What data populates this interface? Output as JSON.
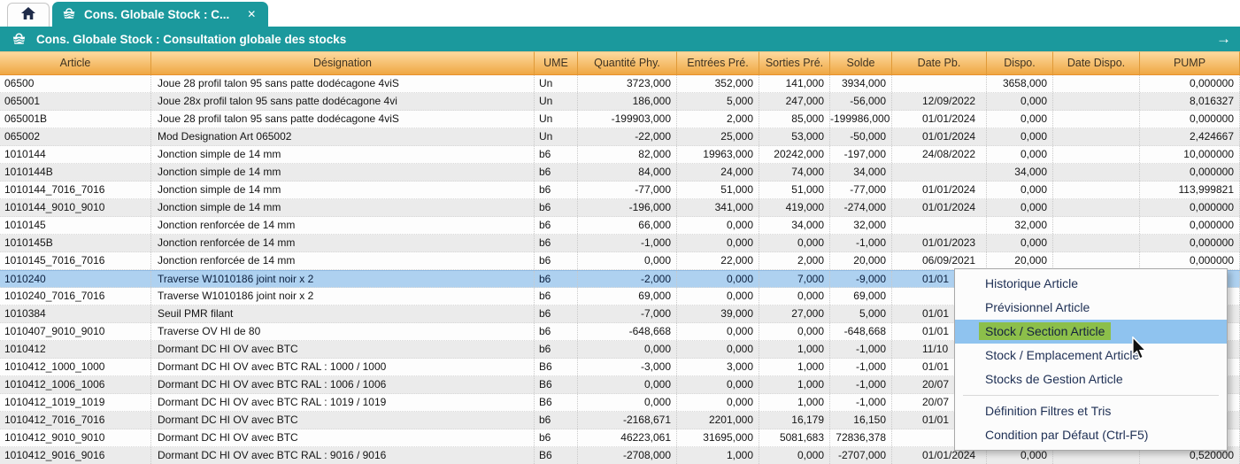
{
  "colors": {
    "accent_teal": "#1b999d",
    "header_orange_top": "#fdd99e",
    "header_orange_bottom": "#efa743",
    "row_alt_gray": "#ebebeb",
    "selection_blue": "#aed1f0",
    "menu_highlight_blue": "#8fc3ef",
    "menu_highlight_green": "#8cbf4a"
  },
  "tabs": {
    "home_icon": "home-icon",
    "active_label": "Cons. Globale Stock : C...",
    "active_close": "✕"
  },
  "title_bar": {
    "icon": "stock-icon",
    "title": "Cons. Globale Stock : Consultation globale des stocks",
    "nav_arrow": "→"
  },
  "table": {
    "columns": [
      "Article",
      "Désignation",
      "UME",
      "Quantité Phy.",
      "Entrées Pré.",
      "Sorties Pré.",
      "Solde",
      "Date Pb.",
      "Dispo.",
      "Date Dispo.",
      "PUMP"
    ],
    "selected_index": 11,
    "rows": [
      {
        "article": "06500",
        "designation": "Joue 28 profil talon 95 sans patte dodécagone 4viS",
        "ume": "Un",
        "qty_phy": "3723,000",
        "entrees": "352,000",
        "sorties": "141,000",
        "solde": "3934,000",
        "date_pb": "",
        "dispo": "3658,000",
        "date_dispo": "",
        "pump": "0,000000"
      },
      {
        "article": "065001",
        "designation": "Joue 28x profil talon 95 sans patte dodécagone 4vi",
        "ume": "Un",
        "qty_phy": "186,000",
        "entrees": "5,000",
        "sorties": "247,000",
        "solde": "-56,000",
        "date_pb": "12/09/2022",
        "dispo": "0,000",
        "date_dispo": "",
        "pump": "8,016327"
      },
      {
        "article": "065001B",
        "designation": "Joue 28 profil talon 95 sans patte dodécagone 4viS",
        "ume": "Un",
        "qty_phy": "-199903,000",
        "entrees": "2,000",
        "sorties": "85,000",
        "solde": "-199986,000",
        "date_pb": "01/01/2024",
        "dispo": "0,000",
        "date_dispo": "",
        "pump": "0,000000"
      },
      {
        "article": "065002",
        "designation": "Mod Designation Art 065002",
        "ume": "Un",
        "qty_phy": "-22,000",
        "entrees": "25,000",
        "sorties": "53,000",
        "solde": "-50,000",
        "date_pb": "01/01/2024",
        "dispo": "0,000",
        "date_dispo": "",
        "pump": "2,424667"
      },
      {
        "article": "1010144",
        "designation": "Jonction simple de 14 mm",
        "ume": "b6",
        "qty_phy": "82,000",
        "entrees": "19963,000",
        "sorties": "20242,000",
        "solde": "-197,000",
        "date_pb": "24/08/2022",
        "dispo": "0,000",
        "date_dispo": "",
        "pump": "10,000000"
      },
      {
        "article": "1010144B",
        "designation": "Jonction simple de 14 mm",
        "ume": "b6",
        "qty_phy": "84,000",
        "entrees": "24,000",
        "sorties": "74,000",
        "solde": "34,000",
        "date_pb": "",
        "dispo": "34,000",
        "date_dispo": "",
        "pump": "0,000000"
      },
      {
        "article": "1010144_7016_7016",
        "designation": "Jonction simple de 14 mm",
        "ume": "b6",
        "qty_phy": "-77,000",
        "entrees": "51,000",
        "sorties": "51,000",
        "solde": "-77,000",
        "date_pb": "01/01/2024",
        "dispo": "0,000",
        "date_dispo": "",
        "pump": "113,999821"
      },
      {
        "article": "1010144_9010_9010",
        "designation": "Jonction simple de 14 mm",
        "ume": "b6",
        "qty_phy": "-196,000",
        "entrees": "341,000",
        "sorties": "419,000",
        "solde": "-274,000",
        "date_pb": "01/01/2024",
        "dispo": "0,000",
        "date_dispo": "",
        "pump": "0,000000"
      },
      {
        "article": "1010145",
        "designation": "Jonction renforcée de 14 mm",
        "ume": "b6",
        "qty_phy": "66,000",
        "entrees": "0,000",
        "sorties": "34,000",
        "solde": "32,000",
        "date_pb": "",
        "dispo": "32,000",
        "date_dispo": "",
        "pump": "0,000000"
      },
      {
        "article": "1010145B",
        "designation": "Jonction renforcée de 14 mm",
        "ume": "b6",
        "qty_phy": "-1,000",
        "entrees": "0,000",
        "sorties": "0,000",
        "solde": "-1,000",
        "date_pb": "01/01/2023",
        "dispo": "0,000",
        "date_dispo": "",
        "pump": "0,000000"
      },
      {
        "article": "1010145_7016_7016",
        "designation": "Jonction renforcée de 14 mm",
        "ume": "b6",
        "qty_phy": "0,000",
        "entrees": "22,000",
        "sorties": "2,000",
        "solde": "20,000",
        "date_pb": "06/09/2021",
        "dispo": "20,000",
        "date_dispo": "",
        "pump": "0,000000"
      },
      {
        "article": "1010240",
        "designation": "Traverse W1010186 joint noir x 2",
        "ume": "b6",
        "qty_phy": "-2,000",
        "entrees": "0,000",
        "sorties": "7,000",
        "solde": "-9,000",
        "date_pb": "01/01",
        "dispo": "",
        "date_dispo": "",
        "pump": ""
      },
      {
        "article": "1010240_7016_7016",
        "designation": "Traverse W1010186 joint noir x 2",
        "ume": "b6",
        "qty_phy": "69,000",
        "entrees": "0,000",
        "sorties": "0,000",
        "solde": "69,000",
        "date_pb": "",
        "dispo": "",
        "date_dispo": "",
        "pump": ""
      },
      {
        "article": "1010384",
        "designation": "Seuil PMR filant",
        "ume": "b6",
        "qty_phy": "-7,000",
        "entrees": "39,000",
        "sorties": "27,000",
        "solde": "5,000",
        "date_pb": "01/01",
        "dispo": "",
        "date_dispo": "",
        "pump": ""
      },
      {
        "article": "1010407_9010_9010",
        "designation": "Traverse OV HI de 80",
        "ume": "b6",
        "qty_phy": "-648,668",
        "entrees": "0,000",
        "sorties": "0,000",
        "solde": "-648,668",
        "date_pb": "01/01",
        "dispo": "",
        "date_dispo": "",
        "pump": ""
      },
      {
        "article": "1010412",
        "designation": "Dormant DC HI OV avec BTC",
        "ume": "b6",
        "qty_phy": "0,000",
        "entrees": "0,000",
        "sorties": "1,000",
        "solde": "-1,000",
        "date_pb": "11/10",
        "dispo": "",
        "date_dispo": "",
        "pump": ""
      },
      {
        "article": "1010412_1000_1000",
        "designation": "Dormant DC HI OV avec BTC RAL : 1000 / 1000",
        "ume": "B6",
        "qty_phy": "-3,000",
        "entrees": "3,000",
        "sorties": "1,000",
        "solde": "-1,000",
        "date_pb": "01/01",
        "dispo": "",
        "date_dispo": "",
        "pump": ""
      },
      {
        "article": "1010412_1006_1006",
        "designation": "Dormant DC HI OV avec BTC RAL : 1006 / 1006",
        "ume": "B6",
        "qty_phy": "0,000",
        "entrees": "0,000",
        "sorties": "1,000",
        "solde": "-1,000",
        "date_pb": "20/07",
        "dispo": "",
        "date_dispo": "",
        "pump": ""
      },
      {
        "article": "1010412_1019_1019",
        "designation": "Dormant DC HI OV avec BTC RAL : 1019 / 1019",
        "ume": "B6",
        "qty_phy": "0,000",
        "entrees": "0,000",
        "sorties": "1,000",
        "solde": "-1,000",
        "date_pb": "20/07",
        "dispo": "",
        "date_dispo": "",
        "pump": ""
      },
      {
        "article": "1010412_7016_7016",
        "designation": "Dormant DC HI OV avec BTC",
        "ume": "b6",
        "qty_phy": "-2168,671",
        "entrees": "2201,000",
        "sorties": "16,179",
        "solde": "16,150",
        "date_pb": "01/01",
        "dispo": "",
        "date_dispo": "",
        "pump": ""
      },
      {
        "article": "1010412_9010_9010",
        "designation": "Dormant DC HI OV avec BTC",
        "ume": "b6",
        "qty_phy": "46223,061",
        "entrees": "31695,000",
        "sorties": "5081,683",
        "solde": "72836,378",
        "date_pb": "",
        "dispo": "",
        "date_dispo": "",
        "pump": ""
      },
      {
        "article": "1010412_9016_9016",
        "designation": "Dormant DC HI OV avec BTC RAL : 9016 / 9016",
        "ume": "B6",
        "qty_phy": "-2708,000",
        "entrees": "1,000",
        "sorties": "0,000",
        "solde": "-2707,000",
        "date_pb": "01/01/2024",
        "dispo": "0,000",
        "date_dispo": "",
        "pump": "0,520000"
      }
    ]
  },
  "context_menu": {
    "items": [
      {
        "label": "Historique Article"
      },
      {
        "label": "Prévisionnel Article"
      },
      {
        "label": "Stock / Section Article",
        "highlighted": true
      },
      {
        "label": "Stock / Emplacement Article"
      },
      {
        "label": "Stocks de Gestion Article",
        "separator_after": true
      },
      {
        "label": "Définition Filtres et Tris"
      },
      {
        "label": "Condition par Défaut (Ctrl-F5)"
      }
    ]
  }
}
